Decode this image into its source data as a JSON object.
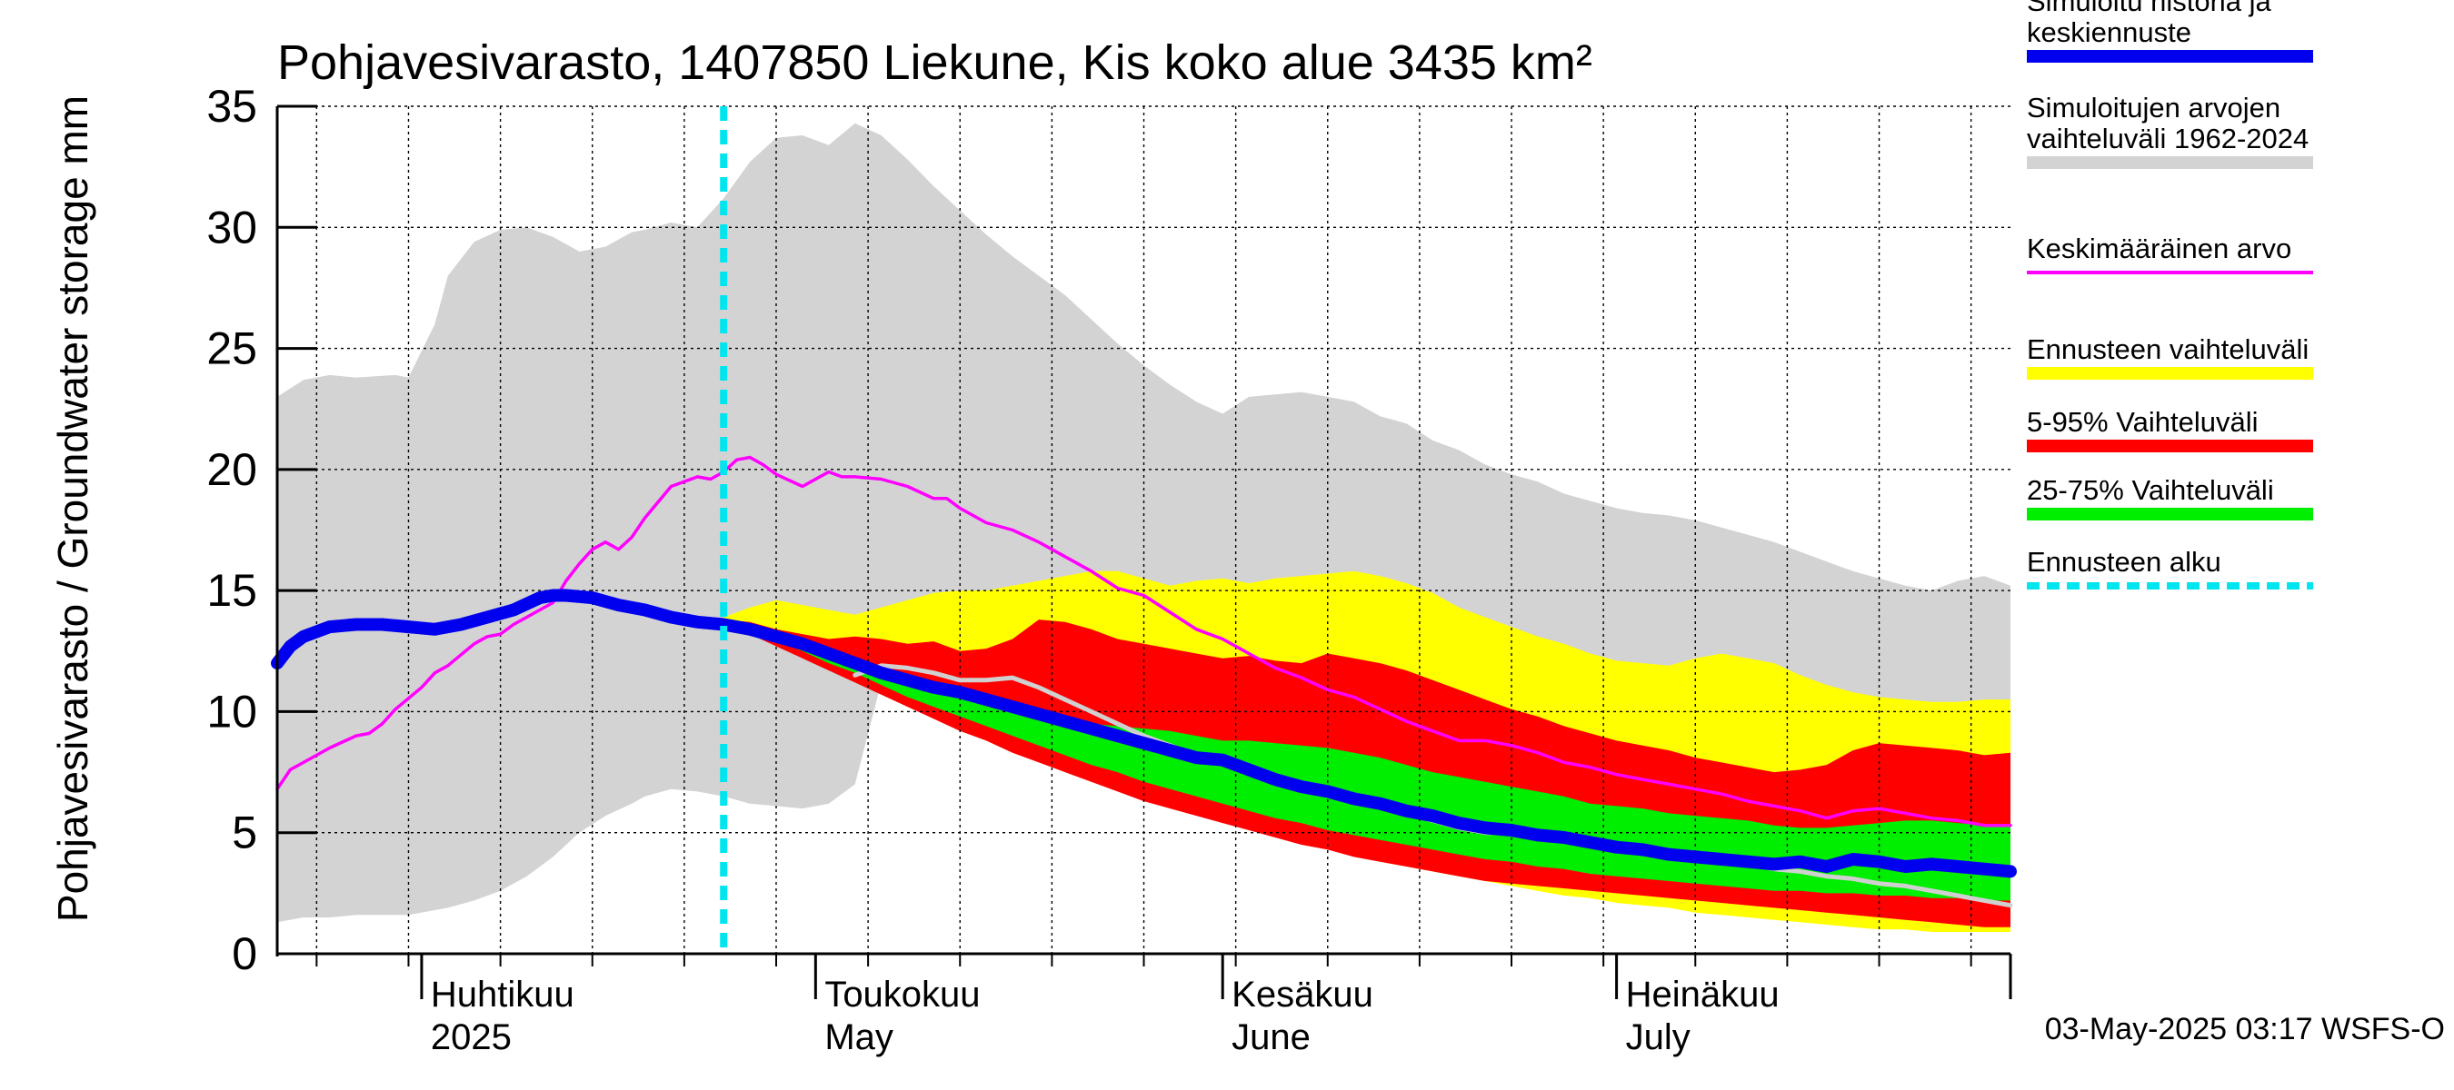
{
  "chart_data": {
    "type": "area",
    "title": "Pohjavesivarasto, 1407850 Liekune, Kis koko alue 3435 km²",
    "ylabel": "Pohjavesivarasto / Groundwater storage   mm",
    "ylim": [
      0,
      35
    ],
    "yticks": [
      "0",
      "5",
      "10",
      "15",
      "20",
      "25",
      "30",
      "35"
    ],
    "ytick_values": [
      0,
      5,
      10,
      15,
      20,
      25,
      30,
      35
    ],
    "x_unit": "day of year 2025",
    "xlim": [
      80,
      212
    ],
    "month_labels": [
      {
        "fi": "Huhtikuu",
        "en": "2025",
        "day": 91
      },
      {
        "fi": "Toukokuu",
        "en": "May",
        "day": 121
      },
      {
        "fi": "Kesäkuu",
        "en": "June",
        "day": 152
      },
      {
        "fi": "Heinäkuu",
        "en": "July",
        "day": 182
      }
    ],
    "month_boundaries": [
      91,
      121,
      152,
      182,
      213
    ],
    "forecast_start_day": 114,
    "timestamp": "03-May-2025 03:17 WSFS-O",
    "grid": true,
    "legend_position": "right",
    "legend": [
      {
        "label": "Simuloitu historia ja keskiennuste",
        "lines": [
          "Simuloitu historia ja",
          "keskiennuste"
        ],
        "color": "#0000ee",
        "style": "thick"
      },
      {
        "label": "Simuloitujen arvojen vaihteluväli 1962-2024",
        "lines": [
          "Simuloitujen arvojen",
          "vaihteluväli 1962-2024"
        ],
        "color": "#d3d3d3",
        "style": "band"
      },
      {
        "label": "Keskimääräinen arvo",
        "lines": [
          "Keskimääräinen arvo"
        ],
        "color": "#ff00ff",
        "style": "thin"
      },
      {
        "label": "Ennusteen vaihteluväli",
        "lines": [
          "Ennusteen vaihteluväli"
        ],
        "color": "#ffff00",
        "style": "band"
      },
      {
        "label": "5-95% Vaihteluväli",
        "lines": [
          "5-95% Vaihteluväli"
        ],
        "color": "#ff0000",
        "style": "band"
      },
      {
        "label": "25-75% Vaihteluväli",
        "lines": [
          "25-75% Vaihteluväli"
        ],
        "color": "#00ee00",
        "style": "band"
      },
      {
        "label": "Ennusteen alku",
        "lines": [
          "Ennusteen alku"
        ],
        "color": "#00e5ee",
        "style": "dashed"
      }
    ],
    "series": [
      {
        "name": "Simuloitujen arvojen vaihteluväli 1962-2024",
        "x": [
          80,
          82,
          84,
          86,
          89,
          90,
          92,
          93,
          95,
          97,
          99,
          101,
          103,
          105,
          107,
          108,
          110,
          112,
          114,
          116,
          118,
          120,
          122,
          124,
          126,
          128,
          130,
          132,
          134,
          136,
          138,
          140,
          142,
          144,
          146,
          148,
          150,
          152,
          154,
          156,
          158,
          160,
          162,
          164,
          166,
          168,
          170,
          172,
          174,
          176,
          178,
          180,
          182,
          184,
          186,
          188,
          190,
          192,
          194,
          196,
          198,
          200,
          202,
          204,
          206,
          208,
          210,
          212
        ],
        "lower": [
          1.3,
          1.5,
          1.5,
          1.6,
          1.6,
          1.6,
          1.8,
          1.9,
          2.2,
          2.6,
          3.2,
          4.0,
          5.0,
          5.7,
          6.2,
          6.5,
          6.8,
          6.7,
          6.5,
          6.2,
          6.1,
          6.0,
          6.2,
          7.0,
          11.2,
          11.9,
          11.5,
          11.0,
          10.6,
          10.2,
          9.8,
          9.4,
          9.0,
          8.6,
          8.2,
          7.8,
          7.4,
          7.0,
          6.7,
          6.4,
          6.1,
          5.8,
          5.5,
          5.2,
          4.9,
          4.6,
          4.4,
          4.1,
          3.9,
          3.6,
          3.4,
          3.2,
          3.0,
          2.8,
          2.6,
          2.5,
          2.3,
          2.1,
          2.0,
          1.8,
          1.7,
          1.5,
          1.4,
          1.2,
          1.1,
          1.0,
          0.9,
          0.9
        ],
        "upper": [
          23.0,
          23.7,
          23.9,
          23.8,
          23.9,
          23.8,
          26.0,
          28.0,
          29.4,
          29.9,
          30.0,
          29.6,
          29.0,
          29.2,
          29.8,
          29.9,
          30.2,
          30.0,
          31.2,
          32.7,
          33.7,
          33.8,
          33.4,
          34.3,
          33.8,
          32.8,
          31.7,
          30.7,
          29.7,
          28.8,
          28.0,
          27.2,
          26.2,
          25.2,
          24.3,
          23.5,
          22.8,
          22.3,
          23.0,
          23.1,
          23.2,
          23.0,
          22.8,
          22.2,
          21.9,
          21.2,
          20.8,
          20.2,
          19.8,
          19.5,
          19.0,
          18.7,
          18.4,
          18.2,
          18.1,
          17.9,
          17.6,
          17.3,
          17.0,
          16.6,
          16.2,
          15.8,
          15.5,
          15.2,
          15.0,
          15.4,
          15.6,
          15.2
        ]
      },
      {
        "name": "Ennusteen vaihteluväli",
        "x": [
          114,
          116,
          118,
          120,
          122,
          124,
          126,
          128,
          130,
          132,
          134,
          136,
          138,
          140,
          142,
          144,
          146,
          148,
          150,
          152,
          154,
          156,
          158,
          160,
          162,
          164,
          166,
          168,
          170,
          172,
          174,
          176,
          178,
          180,
          182,
          184,
          186,
          188,
          190,
          192,
          194,
          196,
          198,
          200,
          202,
          204,
          206,
          208,
          210,
          212
        ],
        "lower": [
          13.6,
          13.3,
          12.8,
          12.3,
          11.8,
          11.3,
          10.8,
          10.3,
          9.8,
          9.3,
          8.8,
          8.4,
          8.0,
          7.6,
          7.2,
          6.8,
          6.4,
          6.1,
          5.8,
          5.5,
          5.2,
          4.9,
          4.6,
          4.3,
          4.1,
          3.8,
          3.6,
          3.4,
          3.2,
          3.0,
          2.8,
          2.6,
          2.4,
          2.3,
          2.1,
          2.0,
          1.9,
          1.7,
          1.6,
          1.5,
          1.4,
          1.3,
          1.2,
          1.1,
          1.0,
          1.0,
          0.9,
          0.9,
          0.9,
          0.9
        ],
        "upper": [
          13.9,
          14.3,
          14.6,
          14.4,
          14.2,
          14.0,
          14.3,
          14.6,
          14.9,
          15.0,
          15.0,
          15.2,
          15.4,
          15.6,
          15.8,
          15.8,
          15.5,
          15.2,
          15.4,
          15.5,
          15.3,
          15.5,
          15.6,
          15.7,
          15.8,
          15.6,
          15.3,
          14.9,
          14.3,
          13.9,
          13.5,
          13.1,
          12.8,
          12.4,
          12.1,
          12.0,
          11.9,
          12.2,
          12.4,
          12.2,
          12.0,
          11.5,
          11.1,
          10.8,
          10.6,
          10.5,
          10.4,
          10.4,
          10.5,
          10.5
        ]
      },
      {
        "name": "5-95% Vaihteluväli",
        "x": [
          114,
          116,
          118,
          120,
          122,
          124,
          126,
          128,
          130,
          132,
          134,
          136,
          138,
          140,
          142,
          144,
          146,
          148,
          150,
          152,
          154,
          156,
          158,
          160,
          162,
          164,
          166,
          168,
          170,
          172,
          174,
          176,
          178,
          180,
          182,
          184,
          186,
          188,
          190,
          192,
          194,
          196,
          198,
          200,
          202,
          204,
          206,
          208,
          210,
          212
        ],
        "lower": [
          13.6,
          13.2,
          12.7,
          12.2,
          11.7,
          11.2,
          10.7,
          10.2,
          9.7,
          9.2,
          8.8,
          8.3,
          7.9,
          7.5,
          7.1,
          6.7,
          6.3,
          6.0,
          5.7,
          5.4,
          5.1,
          4.8,
          4.5,
          4.3,
          4.0,
          3.8,
          3.6,
          3.4,
          3.2,
          3.0,
          2.9,
          2.8,
          2.7,
          2.6,
          2.5,
          2.4,
          2.3,
          2.2,
          2.1,
          2.0,
          1.9,
          1.8,
          1.7,
          1.6,
          1.5,
          1.4,
          1.3,
          1.2,
          1.1,
          1.1
        ],
        "upper": [
          13.8,
          13.7,
          13.4,
          13.2,
          13.0,
          13.1,
          13.0,
          12.8,
          12.9,
          12.5,
          12.6,
          13.0,
          13.8,
          13.7,
          13.4,
          13.0,
          12.8,
          12.6,
          12.4,
          12.2,
          12.3,
          12.1,
          12.0,
          12.4,
          12.2,
          12.0,
          11.7,
          11.3,
          10.9,
          10.5,
          10.1,
          9.8,
          9.4,
          9.1,
          8.8,
          8.6,
          8.4,
          8.1,
          7.9,
          7.7,
          7.5,
          7.6,
          7.8,
          8.4,
          8.7,
          8.6,
          8.5,
          8.4,
          8.2,
          8.3
        ]
      },
      {
        "name": "25-75% Vaihteluväli",
        "x": [
          114,
          116,
          118,
          120,
          122,
          124,
          126,
          128,
          130,
          132,
          134,
          136,
          138,
          140,
          142,
          144,
          146,
          148,
          150,
          152,
          154,
          156,
          158,
          160,
          162,
          164,
          166,
          168,
          170,
          172,
          174,
          176,
          178,
          180,
          182,
          184,
          186,
          188,
          190,
          192,
          194,
          196,
          198,
          200,
          202,
          204,
          206,
          208,
          210,
          212
        ],
        "lower": [
          13.6,
          13.3,
          12.9,
          12.5,
          12.0,
          11.6,
          11.1,
          10.6,
          10.2,
          9.8,
          9.4,
          9.0,
          8.6,
          8.2,
          7.8,
          7.5,
          7.1,
          6.8,
          6.5,
          6.2,
          5.9,
          5.6,
          5.4,
          5.1,
          4.9,
          4.7,
          4.5,
          4.3,
          4.1,
          3.9,
          3.8,
          3.6,
          3.5,
          3.3,
          3.2,
          3.1,
          3.0,
          2.9,
          2.8,
          2.7,
          2.6,
          2.6,
          2.5,
          2.5,
          2.4,
          2.4,
          2.3,
          2.3,
          2.2,
          2.2
        ],
        "upper": [
          13.7,
          13.5,
          13.2,
          12.8,
          12.5,
          12.1,
          11.7,
          11.3,
          11.0,
          10.6,
          10.3,
          10.0,
          9.7,
          9.5,
          9.5,
          9.4,
          9.3,
          9.2,
          9.0,
          8.8,
          8.8,
          8.7,
          8.6,
          8.5,
          8.3,
          8.1,
          7.8,
          7.5,
          7.3,
          7.1,
          6.9,
          6.7,
          6.5,
          6.2,
          6.1,
          6.0,
          5.8,
          5.7,
          5.6,
          5.5,
          5.3,
          5.2,
          5.2,
          5.3,
          5.4,
          5.5,
          5.5,
          5.4,
          5.3,
          5.3
        ]
      },
      {
        "name": "Keskimääräinen arvo",
        "x": [
          80,
          81,
          82,
          84,
          86,
          87,
          88,
          89,
          91,
          92,
          93,
          95,
          96,
          97,
          98,
          99,
          100,
          101,
          102,
          103,
          104,
          105,
          106,
          107,
          108,
          110,
          112,
          113,
          114,
          115,
          116,
          117,
          118,
          120,
          122,
          123,
          124,
          126,
          128,
          130,
          131,
          132,
          134,
          136,
          138,
          140,
          142,
          144,
          146,
          148,
          150,
          152,
          154,
          156,
          158,
          160,
          162,
          164,
          166,
          168,
          170,
          172,
          174,
          176,
          178,
          180,
          182,
          184,
          186,
          188,
          190,
          192,
          194,
          196,
          198,
          200,
          202,
          204,
          206,
          208,
          210,
          212
        ],
        "values": [
          6.8,
          7.6,
          7.9,
          8.5,
          9.0,
          9.1,
          9.5,
          10.1,
          11.0,
          11.6,
          11.9,
          12.8,
          13.1,
          13.2,
          13.6,
          13.9,
          14.2,
          14.5,
          15.4,
          16.1,
          16.7,
          17.0,
          16.7,
          17.2,
          18.0,
          19.3,
          19.7,
          19.6,
          19.9,
          20.4,
          20.5,
          20.2,
          19.8,
          19.3,
          19.9,
          19.7,
          19.7,
          19.6,
          19.3,
          18.8,
          18.8,
          18.4,
          17.8,
          17.5,
          17.0,
          16.4,
          15.8,
          15.1,
          14.8,
          14.1,
          13.4,
          13.0,
          12.4,
          11.8,
          11.4,
          10.9,
          10.6,
          10.1,
          9.6,
          9.2,
          8.8,
          8.8,
          8.6,
          8.3,
          7.9,
          7.7,
          7.4,
          7.2,
          7.0,
          6.8,
          6.6,
          6.3,
          6.1,
          5.9,
          5.6,
          5.9,
          6.0,
          5.8,
          5.6,
          5.5,
          5.3,
          5.3
        ]
      },
      {
        "name": "Simuloitu historia ja keskiennuste",
        "x": [
          80,
          81,
          82,
          84,
          86,
          88,
          90,
          92,
          94,
          96,
          98,
          100,
          101,
          102,
          104,
          106,
          108,
          110,
          112,
          114,
          116,
          118,
          120,
          122,
          124,
          126,
          128,
          130,
          132,
          134,
          136,
          138,
          140,
          142,
          144,
          146,
          148,
          150,
          152,
          154,
          156,
          158,
          160,
          162,
          164,
          166,
          168,
          170,
          172,
          174,
          176,
          178,
          180,
          182,
          184,
          186,
          188,
          190,
          192,
          194,
          196,
          198,
          200,
          202,
          204,
          206,
          208,
          210,
          212
        ],
        "values": [
          12.0,
          12.7,
          13.1,
          13.5,
          13.6,
          13.6,
          13.5,
          13.4,
          13.6,
          13.9,
          14.2,
          14.7,
          14.8,
          14.8,
          14.7,
          14.4,
          14.2,
          13.9,
          13.7,
          13.6,
          13.4,
          13.1,
          12.8,
          12.4,
          12.0,
          11.6,
          11.3,
          11.0,
          10.8,
          10.5,
          10.2,
          9.9,
          9.6,
          9.3,
          9.0,
          8.7,
          8.4,
          8.1,
          8.0,
          7.6,
          7.2,
          6.9,
          6.7,
          6.4,
          6.2,
          5.9,
          5.7,
          5.4,
          5.2,
          5.1,
          4.9,
          4.8,
          4.6,
          4.4,
          4.3,
          4.1,
          4.0,
          3.9,
          3.8,
          3.7,
          3.8,
          3.6,
          3.9,
          3.8,
          3.6,
          3.7,
          3.6,
          3.5,
          3.4
        ]
      },
      {
        "name": "history-median",
        "x": [
          124,
          126,
          128,
          130,
          132,
          134,
          136,
          138,
          140,
          142,
          144,
          146,
          148,
          150,
          152,
          154,
          156,
          158,
          160,
          162,
          164,
          166,
          168,
          170,
          172,
          174,
          176,
          178,
          180,
          182,
          184,
          186,
          188,
          190,
          192,
          194,
          196,
          198,
          200,
          202,
          204,
          206,
          208,
          210,
          212
        ],
        "values": [
          11.5,
          11.9,
          11.8,
          11.6,
          11.3,
          11.3,
          11.4,
          11.0,
          10.5,
          10.0,
          9.5,
          9.0,
          8.6,
          8.2,
          7.9,
          7.6,
          7.3,
          7.0,
          6.7,
          6.4,
          6.1,
          5.8,
          5.5,
          5.2,
          5.0,
          5.0,
          5.0,
          4.8,
          4.6,
          4.5,
          4.3,
          4.1,
          4.0,
          3.8,
          3.7,
          3.5,
          3.4,
          3.2,
          3.1,
          2.9,
          2.8,
          2.6,
          2.4,
          2.2,
          2.0
        ]
      }
    ]
  }
}
